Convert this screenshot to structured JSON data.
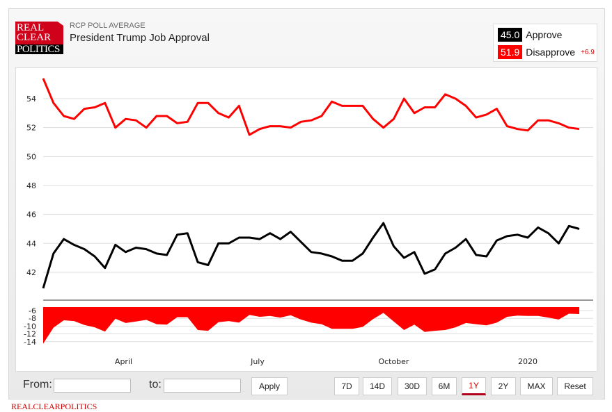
{
  "header": {
    "logo_lines": [
      "REAL",
      "CLEAR",
      "POLITICS"
    ],
    "subtitle": "RCP POLL AVERAGE",
    "title": "President Trump Job Approval"
  },
  "legend": {
    "approve_value": "45.0",
    "approve_label": "Approve",
    "disapprove_value": "51.9",
    "disapprove_label": "Disapprove",
    "spread": "+6.9"
  },
  "colors": {
    "approve": "#000000",
    "disapprove": "#ff0000",
    "spread_fill": "#ff0000"
  },
  "controls": {
    "from_label": "From:",
    "from_value": "",
    "to_label": "to:",
    "to_value": "",
    "apply": "Apply",
    "ranges": [
      "7D",
      "14D",
      "30D",
      "6M",
      "1Y",
      "2Y",
      "MAX",
      "Reset"
    ],
    "active_range": "1Y"
  },
  "footer": "REALCLEARPOLITICS",
  "chart_data": {
    "type": "line",
    "title": "President Trump Job Approval",
    "x_unit": "weeks (Feb 2019 - Feb 2020)",
    "x": [
      0,
      1,
      2,
      3,
      4,
      5,
      6,
      7,
      8,
      9,
      10,
      11,
      12,
      13,
      14,
      15,
      16,
      17,
      18,
      19,
      20,
      21,
      22,
      23,
      24,
      25,
      26,
      27,
      28,
      29,
      30,
      31,
      32,
      33,
      34,
      35,
      36,
      37,
      38,
      39,
      40,
      41,
      42,
      43,
      44,
      45,
      46,
      47,
      48,
      49,
      50,
      51,
      52
    ],
    "x_ticks": [
      {
        "label": "April",
        "x": 7.8
      },
      {
        "label": "July",
        "x": 20.8
      },
      {
        "label": "October",
        "x": 34.0
      },
      {
        "label": "2020",
        "x": 47.0
      }
    ],
    "series": [
      {
        "name": "Approve",
        "values": [
          40.9,
          43.3,
          44.3,
          43.9,
          43.6,
          43.1,
          42.3,
          43.9,
          43.4,
          43.7,
          43.6,
          43.3,
          43.2,
          44.6,
          44.7,
          42.7,
          42.5,
          44.0,
          44.0,
          44.4,
          44.4,
          44.3,
          44.7,
          44.3,
          44.8,
          44.1,
          43.4,
          43.3,
          43.1,
          42.8,
          42.8,
          43.3,
          44.4,
          45.4,
          43.8,
          43.0,
          43.4,
          41.9,
          42.2,
          43.3,
          43.7,
          44.3,
          43.2,
          43.1,
          44.2,
          44.5,
          44.6,
          44.4,
          45.1,
          44.7,
          44.0,
          45.2,
          45.0
        ]
      },
      {
        "name": "Disapprove",
        "values": [
          55.4,
          53.7,
          52.8,
          52.6,
          53.3,
          53.4,
          53.7,
          52.0,
          52.6,
          52.5,
          52.0,
          52.8,
          52.8,
          52.3,
          52.4,
          53.7,
          53.7,
          53.0,
          52.7,
          53.5,
          51.5,
          51.9,
          52.1,
          52.1,
          52.0,
          52.4,
          52.5,
          52.8,
          53.8,
          53.5,
          53.5,
          53.5,
          52.6,
          52.0,
          52.6,
          54.0,
          53.0,
          53.4,
          53.4,
          54.3,
          54.0,
          53.5,
          52.7,
          52.9,
          53.3,
          52.1,
          51.9,
          51.8,
          52.5,
          52.5,
          52.3,
          52.0,
          51.9
        ]
      }
    ],
    "spread_series": {
      "name": "Spread (Approve - Disapprove)",
      "type": "area"
    },
    "y_main": {
      "ticks": [
        42,
        44,
        46,
        48,
        50,
        52,
        54
      ],
      "ylim": [
        41,
        55.5
      ]
    },
    "y_spread": {
      "ticks": [
        -6,
        -8,
        -10,
        -12,
        -14
      ],
      "ylim": [
        -15,
        -5.1
      ]
    },
    "grid": true
  }
}
